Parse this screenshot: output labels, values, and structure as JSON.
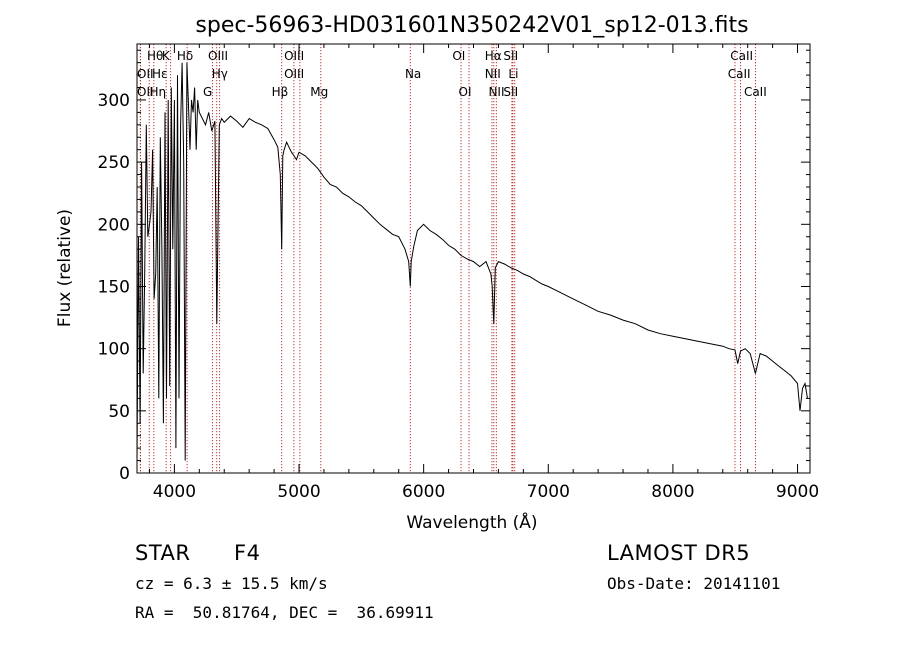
{
  "chart_data": {
    "type": "line",
    "title": "spec-56963-HD031601N350242V01_sp12-013.fits",
    "xlabel": "Wavelength (Å)",
    "ylabel": "Flux (relative)",
    "xlim": [
      3700,
      9100
    ],
    "ylim": [
      0,
      345
    ],
    "x_ticks": [
      4000,
      5000,
      6000,
      7000,
      8000,
      9000
    ],
    "x_tick_labels": [
      "4000",
      "5000",
      "6000",
      "7000",
      "8000",
      "9000"
    ],
    "y_ticks": [
      0,
      50,
      100,
      150,
      200,
      250,
      300
    ],
    "y_tick_labels": [
      "0",
      "50",
      "100",
      "150",
      "200",
      "250",
      "300"
    ],
    "grid": false,
    "line_color": "#000000",
    "marker_color": "#b22222",
    "spectrum": {
      "x": [
        3700,
        3712,
        3725,
        3737,
        3750,
        3762,
        3775,
        3787,
        3800,
        3812,
        3825,
        3837,
        3850,
        3862,
        3875,
        3887,
        3900,
        3912,
        3925,
        3937,
        3950,
        3962,
        3975,
        3987,
        4000,
        4012,
        4025,
        4037,
        4050,
        4062,
        4075,
        4087,
        4100,
        4112,
        4125,
        4137,
        4150,
        4162,
        4175,
        4187,
        4200,
        4225,
        4250,
        4275,
        4300,
        4325,
        4340,
        4360,
        4380,
        4400,
        4450,
        4500,
        4550,
        4600,
        4650,
        4700,
        4750,
        4800,
        4830,
        4850,
        4861,
        4870,
        4880,
        4900,
        4920,
        4940,
        4960,
        4980,
        5000,
        5050,
        5100,
        5150,
        5200,
        5250,
        5300,
        5350,
        5400,
        5450,
        5500,
        5550,
        5600,
        5650,
        5700,
        5750,
        5800,
        5850,
        5880,
        5893,
        5900,
        5920,
        5950,
        6000,
        6050,
        6100,
        6150,
        6200,
        6250,
        6300,
        6350,
        6400,
        6450,
        6500,
        6540,
        6550,
        6563,
        6575,
        6600,
        6650,
        6700,
        6750,
        6800,
        6850,
        6900,
        6950,
        7000,
        7100,
        7200,
        7300,
        7400,
        7500,
        7600,
        7700,
        7800,
        7900,
        8000,
        8100,
        8200,
        8300,
        8400,
        8450,
        8498,
        8520,
        8542,
        8580,
        8620,
        8662,
        8700,
        8750,
        8800,
        8850,
        8900,
        8950,
        9000,
        9020,
        9040,
        9060,
        9080
      ],
      "y": [
        10,
        190,
        40,
        250,
        80,
        160,
        280,
        190,
        200,
        210,
        260,
        140,
        160,
        230,
        60,
        270,
        180,
        40,
        290,
        60,
        300,
        70,
        310,
        180,
        300,
        20,
        320,
        60,
        280,
        330,
        250,
        10,
        330,
        300,
        260,
        300,
        290,
        310,
        260,
        300,
        290,
        285,
        280,
        290,
        275,
        283,
        120,
        280,
        285,
        282,
        287,
        283,
        278,
        285,
        282,
        280,
        277,
        268,
        262,
        240,
        180,
        255,
        260,
        266,
        262,
        258,
        255,
        252,
        258,
        255,
        250,
        245,
        238,
        232,
        230,
        225,
        222,
        218,
        215,
        210,
        205,
        200,
        196,
        192,
        190,
        180,
        170,
        150,
        170,
        182,
        195,
        200,
        195,
        192,
        188,
        183,
        180,
        175,
        172,
        170,
        166,
        170,
        160,
        150,
        120,
        165,
        170,
        168,
        165,
        163,
        160,
        158,
        155,
        152,
        150,
        145,
        140,
        135,
        130,
        127,
        123,
        120,
        115,
        112,
        110,
        108,
        106,
        104,
        102,
        100,
        99,
        88,
        98,
        100,
        96,
        80,
        96,
        94,
        90,
        86,
        82,
        78,
        72,
        50,
        68,
        72,
        60
      ],
      "marker_lines": [
        {
          "label": "Hθ",
          "x": 3798
        },
        {
          "label": "K",
          "x": 3934
        },
        {
          "label": "Hδ",
          "x": 4102
        },
        {
          "label": "OIII",
          "x": 4363
        },
        {
          "label": "OIII",
          "x": 4959
        },
        {
          "label": "OIII",
          "x": 5007
        },
        {
          "label": "OII",
          "x": 3727
        },
        {
          "label": "Hε",
          "x": 3970
        },
        {
          "label": "Hγ",
          "x": 4340
        },
        {
          "label": "OII",
          "x": 3727
        },
        {
          "label": "Hη",
          "x": 3835
        },
        {
          "label": "G",
          "x": 4305
        },
        {
          "label": "Hβ",
          "x": 4861
        },
        {
          "label": "Mg",
          "x": 5175
        },
        {
          "label": "Na",
          "x": 5893
        },
        {
          "label": "OI",
          "x": 6300
        },
        {
          "label": "OI",
          "x": 6364
        },
        {
          "label": "Hα",
          "x": 6563
        },
        {
          "label": "NII",
          "x": 6548
        },
        {
          "label": "NII",
          "x": 6583
        },
        {
          "label": "SII",
          "x": 6716
        },
        {
          "label": "Li",
          "x": 6708
        },
        {
          "label": "SII",
          "x": 6731
        },
        {
          "label": "CaII",
          "x": 8498
        },
        {
          "label": "CaII",
          "x": 8542
        },
        {
          "label": "CaII",
          "x": 8662
        }
      ],
      "marker_labels": [
        {
          "text": "Hθ",
          "x": 3780,
          "row": 0
        },
        {
          "text": "K",
          "x": 3900,
          "row": 0
        },
        {
          "text": "Hδ",
          "x": 4020,
          "row": 0
        },
        {
          "text": "OIII",
          "x": 4270,
          "row": 0
        },
        {
          "text": "OIII",
          "x": 4880,
          "row": 0
        },
        {
          "text": "OI",
          "x": 6230,
          "row": 0
        },
        {
          "text": "Hα",
          "x": 6490,
          "row": 0
        },
        {
          "text": "SII",
          "x": 6640,
          "row": 0
        },
        {
          "text": "CaII",
          "x": 8460,
          "row": 0
        },
        {
          "text": "OII",
          "x": 3700,
          "row": 1
        },
        {
          "text": "Hε",
          "x": 3820,
          "row": 1
        },
        {
          "text": "Hγ",
          "x": 4300,
          "row": 1
        },
        {
          "text": "OIII",
          "x": 4880,
          "row": 1
        },
        {
          "text": "Na",
          "x": 5850,
          "row": 1
        },
        {
          "text": "NII",
          "x": 6490,
          "row": 1
        },
        {
          "text": "Li",
          "x": 6680,
          "row": 1
        },
        {
          "text": "CaII",
          "x": 8440,
          "row": 1
        },
        {
          "text": "OII",
          "x": 3700,
          "row": 2
        },
        {
          "text": "Hη",
          "x": 3800,
          "row": 2
        },
        {
          "text": "G",
          "x": 4230,
          "row": 2
        },
        {
          "text": "Hβ",
          "x": 4780,
          "row": 2
        },
        {
          "text": "Mg",
          "x": 5090,
          "row": 2
        },
        {
          "text": "OI",
          "x": 6280,
          "row": 2
        },
        {
          "text": "NII",
          "x": 6520,
          "row": 2
        },
        {
          "text": "SII",
          "x": 6640,
          "row": 2
        },
        {
          "text": "CaII",
          "x": 8570,
          "row": 2
        }
      ]
    }
  },
  "info": {
    "object_type": "STAR",
    "subclass": "F4",
    "survey": "LAMOST DR5",
    "redshift": "cz = 6.3 ± 15.5 km/s",
    "obs_date": "Obs-Date: 20141101",
    "coords": "RA =  50.81764, DEC =  36.69911"
  }
}
